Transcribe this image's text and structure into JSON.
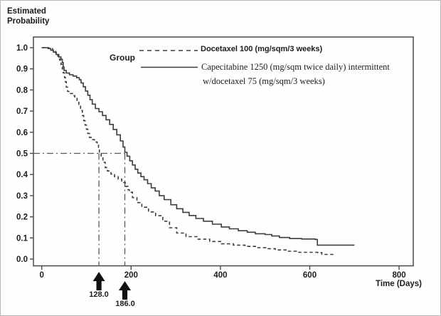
{
  "figure": {
    "y_axis_title": "Estimated\nProbability",
    "x_axis_label": "Time (Days)",
    "legend_title": "Group",
    "legend": [
      {
        "line_style": "dashed",
        "label": "Docetaxel 100 (mg/sqm/3 weeks)"
      },
      {
        "line_style": "solid",
        "label_lines": [
          "Capecitabine 1250 (mg/sqm twice daily) intermittent",
          "w/docetaxel 75 (mg/sqm/3 weeks)"
        ]
      }
    ],
    "median_annotations": [
      {
        "label": "128.0",
        "series": "Docetaxel 100 (mg/sqm/3 weeks)"
      },
      {
        "label": "186.0",
        "series": "Capecitabine 1250 (mg/sqm twice daily) intermittent w/docetaxel 75 (mg/sqm/3 weeks)"
      }
    ]
  },
  "chart_data": {
    "type": "line",
    "subtype": "kaplan-meier-step",
    "title": "",
    "xlabel": "Time (Days)",
    "ylabel": "Estimated Probability",
    "xlim": [
      -20,
      830
    ],
    "ylim": [
      0,
      1.0
    ],
    "x_ticks": [
      0,
      200,
      400,
      600,
      800
    ],
    "y_ticks": [
      "1.0",
      "0.9",
      "0.8",
      "0.7",
      "0.6",
      "0.5",
      "0.4",
      "0.3",
      "0.2",
      "0.1",
      "0.0"
    ],
    "grid": false,
    "legend_position": "inside-top-right",
    "reference_lines": {
      "probability": 0.5,
      "median_days": [
        128.0,
        186.0
      ]
    },
    "series": [
      {
        "name": "Docetaxel 100 (mg/sqm/3 weeks)",
        "line_style": "dashed",
        "median_days": 128.0,
        "points": [
          [
            0,
            1.0
          ],
          [
            16,
            0.996
          ],
          [
            24,
            0.988
          ],
          [
            31,
            0.976
          ],
          [
            36,
            0.96
          ],
          [
            40,
            0.941
          ],
          [
            43,
            0.921
          ],
          [
            46,
            0.9
          ],
          [
            48,
            0.881
          ],
          [
            51,
            0.859
          ],
          [
            53,
            0.838
          ],
          [
            55,
            0.813
          ],
          [
            58,
            0.793
          ],
          [
            63,
            0.783
          ],
          [
            69,
            0.773
          ],
          [
            74,
            0.761
          ],
          [
            79,
            0.745
          ],
          [
            83,
            0.723
          ],
          [
            87,
            0.703
          ],
          [
            91,
            0.679
          ],
          [
            94,
            0.655
          ],
          [
            97,
            0.634
          ],
          [
            100,
            0.614
          ],
          [
            103,
            0.594
          ],
          [
            107,
            0.575
          ],
          [
            112,
            0.565
          ],
          [
            118,
            0.554
          ],
          [
            124,
            0.544
          ],
          [
            127,
            0.52
          ],
          [
            129,
            0.5
          ],
          [
            133,
            0.483
          ],
          [
            137,
            0.458
          ],
          [
            142,
            0.433
          ],
          [
            147,
            0.417
          ],
          [
            155,
            0.402
          ],
          [
            163,
            0.39
          ],
          [
            171,
            0.378
          ],
          [
            179,
            0.362
          ],
          [
            187,
            0.344
          ],
          [
            193,
            0.328
          ],
          [
            196,
            0.316
          ],
          [
            203,
            0.291
          ],
          [
            213,
            0.267
          ],
          [
            224,
            0.245
          ],
          [
            239,
            0.223
          ],
          [
            255,
            0.205
          ],
          [
            271,
            0.179
          ],
          [
            286,
            0.148
          ],
          [
            302,
            0.123
          ],
          [
            323,
            0.106
          ],
          [
            350,
            0.094
          ],
          [
            376,
            0.083
          ],
          [
            402,
            0.072
          ],
          [
            429,
            0.066
          ],
          [
            455,
            0.06
          ],
          [
            481,
            0.054
          ],
          [
            502,
            0.049
          ],
          [
            523,
            0.043
          ],
          [
            547,
            0.037
          ],
          [
            570,
            0.032
          ],
          [
            618,
            0.03
          ],
          [
            627,
            0.022
          ],
          [
            656,
            0.017
          ]
        ]
      },
      {
        "name": "Capecitabine 1250 (mg/sqm twice daily) intermittent w/docetaxel 75 (mg/sqm/3 weeks)",
        "line_style": "solid",
        "median_days": 186.0,
        "points": [
          [
            0,
            1.0
          ],
          [
            14,
            0.996
          ],
          [
            20,
            0.988
          ],
          [
            26,
            0.979
          ],
          [
            32,
            0.968
          ],
          [
            38,
            0.956
          ],
          [
            43,
            0.945
          ],
          [
            46,
            0.93
          ],
          [
            48,
            0.908
          ],
          [
            50,
            0.892
          ],
          [
            55,
            0.88
          ],
          [
            62,
            0.872
          ],
          [
            70,
            0.866
          ],
          [
            78,
            0.858
          ],
          [
            84,
            0.848
          ],
          [
            88,
            0.833
          ],
          [
            93,
            0.815
          ],
          [
            98,
            0.795
          ],
          [
            103,
            0.775
          ],
          [
            108,
            0.754
          ],
          [
            113,
            0.733
          ],
          [
            120,
            0.712
          ],
          [
            128,
            0.697
          ],
          [
            136,
            0.679
          ],
          [
            144,
            0.659
          ],
          [
            152,
            0.637
          ],
          [
            160,
            0.613
          ],
          [
            168,
            0.588
          ],
          [
            176,
            0.559
          ],
          [
            182,
            0.53
          ],
          [
            186,
            0.505
          ],
          [
            191,
            0.487
          ],
          [
            197,
            0.465
          ],
          [
            203,
            0.445
          ],
          [
            209,
            0.425
          ],
          [
            215,
            0.407
          ],
          [
            222,
            0.39
          ],
          [
            229,
            0.375
          ],
          [
            237,
            0.357
          ],
          [
            245,
            0.337
          ],
          [
            254,
            0.322
          ],
          [
            263,
            0.3
          ],
          [
            274,
            0.281
          ],
          [
            289,
            0.257
          ],
          [
            302,
            0.238
          ],
          [
            316,
            0.221
          ],
          [
            330,
            0.206
          ],
          [
            345,
            0.192
          ],
          [
            362,
            0.179
          ],
          [
            382,
            0.165
          ],
          [
            402,
            0.152
          ],
          [
            420,
            0.143
          ],
          [
            440,
            0.134
          ],
          [
            460,
            0.127
          ],
          [
            478,
            0.12
          ],
          [
            500,
            0.116
          ],
          [
            515,
            0.109
          ],
          [
            532,
            0.102
          ],
          [
            555,
            0.097
          ],
          [
            582,
            0.095
          ],
          [
            612,
            0.093
          ],
          [
            617,
            0.066
          ],
          [
            700,
            0.066
          ]
        ]
      }
    ]
  }
}
